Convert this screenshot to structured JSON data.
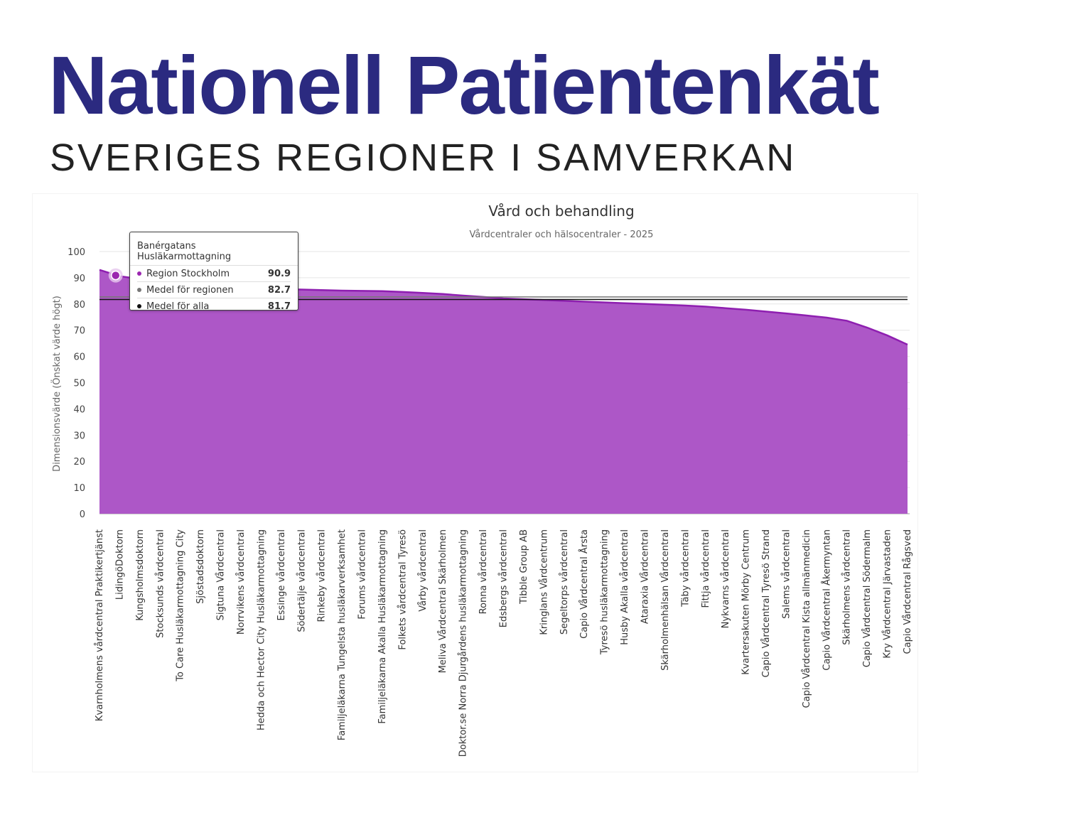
{
  "header": {
    "title": "Nationell Patientenkät",
    "subtitle": "SVERIGES REGIONER I SAMVERKAN"
  },
  "chart_data": {
    "type": "area",
    "title": "Vård och behandling",
    "subtitle": "Vårdcentraler och hälsocentraler - 2025",
    "ylabel": "Dimensionsvärde (Önskat värde högt)",
    "xlabel": "",
    "ylim": [
      0,
      100
    ],
    "yticks": [
      0,
      10,
      20,
      30,
      40,
      50,
      60,
      70,
      80,
      90,
      100
    ],
    "grid": true,
    "categories": [
      "Kvarnholmens vårdcentral Praktikertjänst",
      "LidingöDoktorn",
      "Kungsholmsdoktorn",
      "Stocksunds vårdcentral",
      "To Care Husläkarmottagning City",
      "Sjöstadsdoktorn",
      "Sigtuna Vårdcentral",
      "Norrvikens vårdcentral",
      "Hedda och Hector City Husläkarmottagning",
      "Essinge vårdcentral",
      "Södertälje vårdcentral",
      "Rinkeby vårdcentral",
      "Familjeläkarna Tungelsta husläkarverksamhet",
      "Forums vårdcentral",
      "Familjeläkarna Akalla Husläkarmottagning",
      "Folkets vårdcentral Tyresö",
      "Vårby vårdcentral",
      "Meliva Vårdcentral Skärholmen",
      "Doktor.se Norra Djurgårdens husläkarmottagning",
      "Ronna vårdcentral",
      "Edsbergs vårdcentral",
      "Tibble Group AB",
      "Kringlans Vårdcentrum",
      "Segeltorps vårdcentral",
      "Capio Vårdcentral Årsta",
      "Tyresö husläkarmottagning",
      "Husby Akalla vårdcentral",
      "Ataraxia Vårdcentral",
      "Skärholmenhälsan Vårdcentral",
      "Täby vårdcentral",
      "Fittja vårdcentral",
      "Nykvarns vårdcentral",
      "Kvartersakuten Mörby Centrum",
      "Capio Vårdcentral Tyresö Strand",
      "Salems vårdcentral",
      "Capio Vårdcentral Kista allmänmedicin",
      "Capio Vårdcentral Åkermyntan",
      "Skärholmens vårdcentral",
      "Capio Vårdcentral Södermalm",
      "Kry Vårdcentral Järvastaden",
      "Capio Vårdcentral Rågsved"
    ],
    "series": [
      {
        "name": "Region Stockholm",
        "color": "#8e1fb0",
        "fill": "#ad57c7",
        "values": [
          93.0,
          90.6,
          89.5,
          88.5,
          87.8,
          87.2,
          86.6,
          86.2,
          85.8,
          85.6,
          85.5,
          85.3,
          85.1,
          85.0,
          84.9,
          84.6,
          84.2,
          83.8,
          83.2,
          82.7,
          82.1,
          81.8,
          81.5,
          81.2,
          80.9,
          80.6,
          80.3,
          80.0,
          79.7,
          79.4,
          79.0,
          78.4,
          77.8,
          77.1,
          76.4,
          75.6,
          74.8,
          73.6,
          71.0,
          68.0,
          64.5
        ]
      }
    ],
    "reference_lines": [
      {
        "name": "Medel för regionen",
        "value": 82.7,
        "color": "#777777"
      },
      {
        "name": "Medel för alla",
        "value": 81.7,
        "color": "#111111"
      }
    ],
    "tooltip": {
      "title": "Banérgatans Husläkarmottagning",
      "rows": [
        {
          "label": "Region Stockholm",
          "value": "90.9",
          "color": "#9b27b0"
        },
        {
          "label": "Medel för regionen",
          "value": "82.7",
          "color": "#777777"
        },
        {
          "label": "Medel för alla",
          "value": "81.7",
          "color": "#111111"
        }
      ]
    }
  }
}
